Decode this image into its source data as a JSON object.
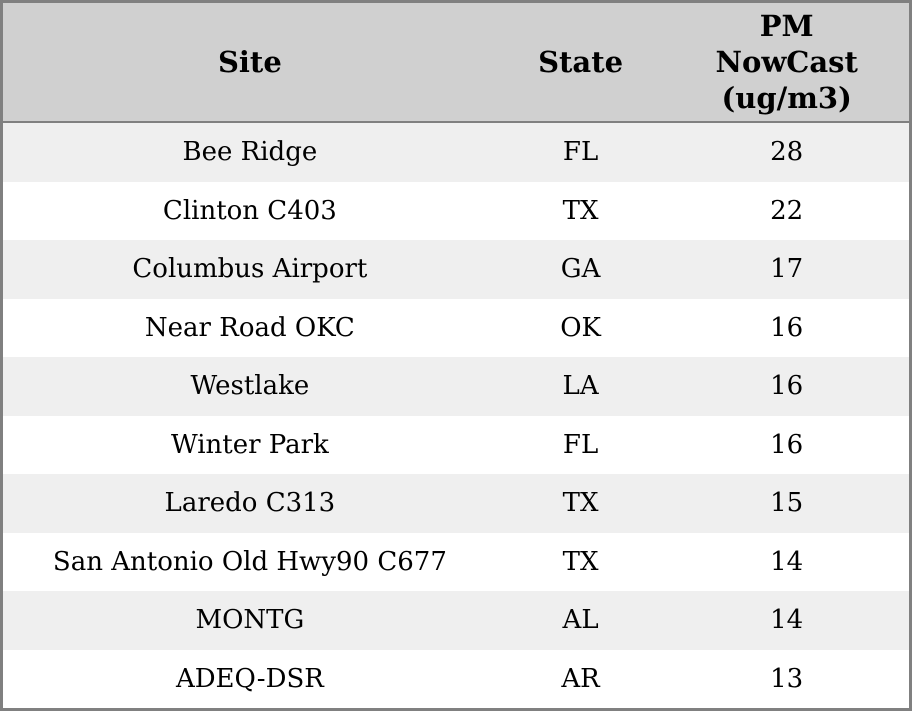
{
  "chart_data": {
    "type": "table",
    "columns": [
      "Site",
      "State",
      "PM NowCast (ug/m3)"
    ],
    "rows": [
      [
        "Bee Ridge",
        "FL",
        28
      ],
      [
        "Clinton C403",
        "TX",
        22
      ],
      [
        "Columbus Airport",
        "GA",
        17
      ],
      [
        "Near Road OKC",
        "OK",
        16
      ],
      [
        "Westlake",
        "LA",
        16
      ],
      [
        "Winter Park",
        "FL",
        16
      ],
      [
        "Laredo C313",
        "TX",
        15
      ],
      [
        "San Antonio Old Hwy90 C677",
        "TX",
        14
      ],
      [
        "MONTG",
        "AL",
        14
      ],
      [
        "ADEQ-DSR",
        "AR",
        13
      ]
    ]
  },
  "header_display": {
    "site": "Site",
    "state": "State",
    "pm_line1": "PM",
    "pm_line2": "NowCast",
    "pm_line3": "(ug/m3)"
  },
  "colors": {
    "header_bg": "#d0d0d0",
    "border": "#808080",
    "row_odd_bg": "#efefef",
    "row_even_bg": "#ffffff",
    "text": "#000000"
  }
}
